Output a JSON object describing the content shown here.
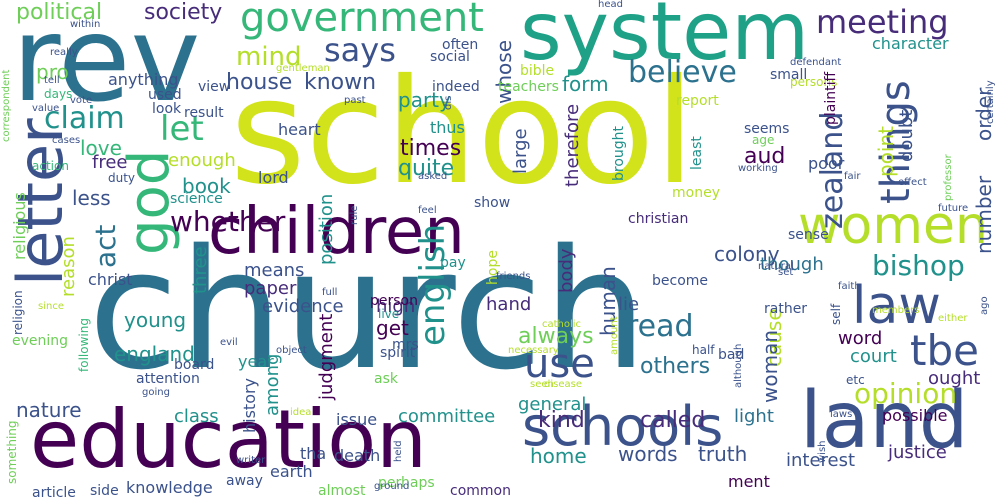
{
  "word_cloud": {
    "words": [
      {
        "text": "school",
        "color": "#d2e21b"
      },
      {
        "text": "church",
        "color": "#2c728e"
      },
      {
        "text": "rev",
        "color": "#2c728e"
      },
      {
        "text": "system",
        "color": "#1fa187"
      },
      {
        "text": "education",
        "color": "#440154"
      },
      {
        "text": "children",
        "color": "#440154"
      },
      {
        "text": "letter",
        "color": "#3b528b"
      },
      {
        "text": "land",
        "color": "#3b528b"
      },
      {
        "text": "schools",
        "color": "#3b528b"
      },
      {
        "text": "women",
        "color": "#b5de2b"
      },
      {
        "text": "god",
        "color": "#35b779"
      },
      {
        "text": "law",
        "color": "#3b528b"
      },
      {
        "text": "government",
        "color": "#35b779"
      },
      {
        "text": "things",
        "color": "#3b528b"
      },
      {
        "text": "tbe",
        "color": "#3b528b"
      },
      {
        "text": "use",
        "color": "#3b528b"
      },
      {
        "text": "english",
        "color": "#21918c"
      },
      {
        "text": "meeting",
        "color": "#472c7a"
      },
      {
        "text": "says",
        "color": "#3b528b"
      },
      {
        "text": "zealand",
        "color": "#3b528b"
      },
      {
        "text": "claim",
        "color": "#21918c"
      },
      {
        "text": "let",
        "color": "#35b779"
      },
      {
        "text": "believe",
        "color": "#2c728e"
      },
      {
        "text": "whether",
        "color": "#440154"
      },
      {
        "text": "read",
        "color": "#2c728e"
      },
      {
        "text": "opinion",
        "color": "#b5de2b"
      },
      {
        "text": "bishop",
        "color": "#21918c"
      },
      {
        "text": "act",
        "color": "#2c728e"
      },
      {
        "text": "mind",
        "color": "#b5de2b"
      },
      {
        "text": "political",
        "color": "#6ece58"
      },
      {
        "text": "society",
        "color": "#472c7a"
      },
      {
        "text": "house",
        "color": "#3b528b"
      },
      {
        "text": "known",
        "color": "#3b528b"
      },
      {
        "text": "party",
        "color": "#21918c"
      },
      {
        "text": "form",
        "color": "#21918c"
      },
      {
        "text": "pro",
        "color": "#6ece58"
      },
      {
        "text": "whose",
        "color": "#3b528b"
      },
      {
        "text": "times",
        "color": "#440154"
      },
      {
        "text": "quite",
        "color": "#21918c"
      },
      {
        "text": "love",
        "color": "#35b779"
      },
      {
        "text": "less",
        "color": "#3b528b"
      },
      {
        "text": "book",
        "color": "#21918c"
      },
      {
        "text": "free",
        "color": "#472c7a"
      },
      {
        "text": "enough",
        "color": "#b5de2b"
      },
      {
        "text": "large",
        "color": "#3b528b"
      },
      {
        "text": "therefore",
        "color": "#472c7a"
      },
      {
        "text": "aud",
        "color": "#440154"
      },
      {
        "text": "point",
        "color": "#b5de2b"
      },
      {
        "text": "doubt",
        "color": "#3b528b"
      },
      {
        "text": "order",
        "color": "#3b528b"
      },
      {
        "text": "number",
        "color": "#3b528b"
      },
      {
        "text": "colony",
        "color": "#3b528b"
      },
      {
        "text": "position",
        "color": "#21918c"
      },
      {
        "text": "means",
        "color": "#3b528b"
      },
      {
        "text": "three",
        "color": "#21918c"
      },
      {
        "text": "paper",
        "color": "#472c7a"
      },
      {
        "text": "evidence",
        "color": "#3b528b"
      },
      {
        "text": "high",
        "color": "#472c7a"
      },
      {
        "text": "get",
        "color": "#440154"
      },
      {
        "text": "judgment",
        "color": "#440154"
      },
      {
        "text": "body",
        "color": "#472c7a"
      },
      {
        "text": "always",
        "color": "#6ece58"
      },
      {
        "text": "human",
        "color": "#3b528b"
      },
      {
        "text": "others",
        "color": "#2c728e"
      },
      {
        "text": "among",
        "color": "#21918c"
      },
      {
        "text": "young",
        "color": "#21918c"
      },
      {
        "text": "england",
        "color": "#21918c"
      },
      {
        "text": "reason",
        "color": "#b5de2b"
      },
      {
        "text": "nature",
        "color": "#3b528b"
      },
      {
        "text": "general",
        "color": "#21918c"
      },
      {
        "text": "kind",
        "color": "#472c7a"
      },
      {
        "text": "called",
        "color": "#472c7a"
      },
      {
        "text": "committee",
        "color": "#21918c"
      },
      {
        "text": "home",
        "color": "#21918c"
      },
      {
        "text": "words",
        "color": "#3b528b"
      },
      {
        "text": "truth",
        "color": "#3b528b"
      },
      {
        "text": "interest",
        "color": "#3b528b"
      },
      {
        "text": "justice",
        "color": "#472c7a"
      },
      {
        "text": "cause",
        "color": "#b5de2b"
      },
      {
        "text": "woman",
        "color": "#3b528b"
      },
      {
        "text": "word",
        "color": "#440154"
      },
      {
        "text": "court",
        "color": "#21918c"
      },
      {
        "text": "ought",
        "color": "#472c7a"
      },
      {
        "text": "light",
        "color": "#2c728e"
      },
      {
        "text": "though",
        "color": "#2c728e"
      },
      {
        "text": "lie",
        "color": "#3b528b"
      },
      {
        "text": "hand",
        "color": "#472c7a"
      },
      {
        "text": "history",
        "color": "#3b528b"
      },
      {
        "text": "year",
        "color": "#21918c"
      },
      {
        "text": "class",
        "color": "#21918c"
      },
      {
        "text": "christ",
        "color": "#3b528b"
      },
      {
        "text": "religious",
        "color": "#6ece58"
      },
      {
        "text": "knowledge",
        "color": "#3b528b"
      },
      {
        "text": "side",
        "color": "#3b528b"
      },
      {
        "text": "article",
        "color": "#3b528b"
      },
      {
        "text": "almost",
        "color": "#6ece58"
      },
      {
        "text": "perhaps",
        "color": "#6ece58"
      },
      {
        "text": "common",
        "color": "#472c7a"
      },
      {
        "text": "death",
        "color": "#3b528b"
      },
      {
        "text": "issue",
        "color": "#3b528b"
      },
      {
        "text": "away",
        "color": "#3b528b"
      },
      {
        "text": "earth",
        "color": "#3b528b"
      },
      {
        "text": "tha",
        "color": "#3b528b"
      },
      {
        "text": "ment",
        "color": "#440154"
      },
      {
        "text": "possible",
        "color": "#440154"
      },
      {
        "text": "character",
        "color": "#21918c"
      },
      {
        "text": "science",
        "color": "#21918c"
      },
      {
        "text": "lord",
        "color": "#3b528b"
      },
      {
        "text": "heart",
        "color": "#3b528b"
      },
      {
        "text": "anything",
        "color": "#3b528b"
      },
      {
        "text": "social",
        "color": "#3b528b"
      },
      {
        "text": "often",
        "color": "#3b528b"
      },
      {
        "text": "indeed",
        "color": "#3b528b"
      },
      {
        "text": "teachers",
        "color": "#6ece58"
      },
      {
        "text": "bible",
        "color": "#b5de2b"
      },
      {
        "text": "small",
        "color": "#3b528b"
      },
      {
        "text": "persons",
        "color": "#b5de2b"
      },
      {
        "text": "report",
        "color": "#b5de2b"
      },
      {
        "text": "seems",
        "color": "#3b528b"
      },
      {
        "text": "age",
        "color": "#6ece58"
      },
      {
        "text": "poor",
        "color": "#3b528b"
      },
      {
        "text": "plaintiff",
        "color": "#440154"
      },
      {
        "text": "thus",
        "color": "#21918c"
      },
      {
        "text": "brought",
        "color": "#21918c"
      },
      {
        "text": "least",
        "color": "#21918c"
      },
      {
        "text": "money",
        "color": "#b5de2b"
      },
      {
        "text": "christian",
        "color": "#472c7a"
      },
      {
        "text": "sense",
        "color": "#3b528b"
      },
      {
        "text": "show",
        "color": "#3b528b"
      },
      {
        "text": "pay",
        "color": "#21918c"
      },
      {
        "text": "hope",
        "color": "#b5de2b"
      },
      {
        "text": "become",
        "color": "#3b528b"
      },
      {
        "text": "rather",
        "color": "#3b528b"
      },
      {
        "text": "person",
        "color": "#440154"
      },
      {
        "text": "live",
        "color": "#21918c"
      },
      {
        "text": "spirit",
        "color": "#3b528b"
      },
      {
        "text": "mrs",
        "color": "#3b528b"
      },
      {
        "text": "ask",
        "color": "#6ece58"
      },
      {
        "text": "board",
        "color": "#3b528b"
      },
      {
        "text": "attention",
        "color": "#3b528b"
      },
      {
        "text": "evening",
        "color": "#6ece58"
      },
      {
        "text": "following",
        "color": "#35b779"
      },
      {
        "text": "religion",
        "color": "#3b528b"
      },
      {
        "text": "something",
        "color": "#6ece58"
      },
      {
        "text": "view",
        "color": "#3b528b"
      },
      {
        "text": "gentleman",
        "color": "#b5de2b"
      },
      {
        "text": "within",
        "color": "#3b528b"
      },
      {
        "text": "really",
        "color": "#3b528b"
      },
      {
        "text": "tell",
        "color": "#3b528b"
      },
      {
        "text": "days",
        "color": "#35b779"
      },
      {
        "text": "used",
        "color": "#3b528b"
      },
      {
        "text": "look",
        "color": "#3b528b"
      },
      {
        "text": "result",
        "color": "#3b528b"
      },
      {
        "text": "vote",
        "color": "#3b528b"
      },
      {
        "text": "value",
        "color": "#3b528b"
      },
      {
        "text": "cases",
        "color": "#3b528b"
      },
      {
        "text": "action",
        "color": "#35b779"
      },
      {
        "text": "duty",
        "color": "#3b528b"
      },
      {
        "text": "correspondent",
        "color": "#6ece58"
      },
      {
        "text": "asked",
        "color": "#3b528b"
      },
      {
        "text": "dis",
        "color": "#3b528b"
      },
      {
        "text": "past",
        "color": "#3b528b"
      },
      {
        "text": "head",
        "color": "#3b528b"
      },
      {
        "text": "defendant",
        "color": "#3b528b"
      },
      {
        "text": "certainly",
        "color": "#3b528b"
      },
      {
        "text": "professor",
        "color": "#6ece58"
      },
      {
        "text": "working",
        "color": "#3b528b"
      },
      {
        "text": "fair",
        "color": "#3b528b"
      },
      {
        "text": "effect",
        "color": "#3b528b"
      },
      {
        "text": "future",
        "color": "#3b528b"
      },
      {
        "text": "natural",
        "color": "#3b528b"
      },
      {
        "text": "set",
        "color": "#3b528b"
      },
      {
        "text": "faith",
        "color": "#3b528b"
      },
      {
        "text": "members",
        "color": "#b5de2b"
      },
      {
        "text": "either",
        "color": "#b5de2b"
      },
      {
        "text": "ago",
        "color": "#3b528b"
      },
      {
        "text": "self",
        "color": "#3b528b"
      },
      {
        "text": "etc",
        "color": "#3b528b"
      },
      {
        "text": "laws",
        "color": "#3b528b"
      },
      {
        "text": "wish",
        "color": "#3b528b"
      },
      {
        "text": "although",
        "color": "#3b528b"
      },
      {
        "text": "half",
        "color": "#3b528b"
      },
      {
        "text": "bad",
        "color": "#3b528b"
      },
      {
        "text": "catholic",
        "color": "#b5de2b"
      },
      {
        "text": "necessary",
        "color": "#b5de2b"
      },
      {
        "text": "amount",
        "color": "#b5de2b"
      },
      {
        "text": "friends",
        "color": "#3b528b"
      },
      {
        "text": "seen",
        "color": "#b5de2b"
      },
      {
        "text": "disease",
        "color": "#b5de2b"
      },
      {
        "text": "ground",
        "color": "#3b528b"
      },
      {
        "text": "held",
        "color": "#3b528b"
      },
      {
        "text": "writer",
        "color": "#3b528b"
      },
      {
        "text": "idea",
        "color": "#b5de2b"
      },
      {
        "text": "going",
        "color": "#3b528b"
      },
      {
        "text": "object",
        "color": "#3b528b"
      },
      {
        "text": "full",
        "color": "#3b528b"
      },
      {
        "text": "evil",
        "color": "#3b528b"
      },
      {
        "text": "since",
        "color": "#b5de2b"
      },
      {
        "text": "rule",
        "color": "#3b528b"
      },
      {
        "text": "feel",
        "color": "#3b528b"
      }
    ]
  }
}
